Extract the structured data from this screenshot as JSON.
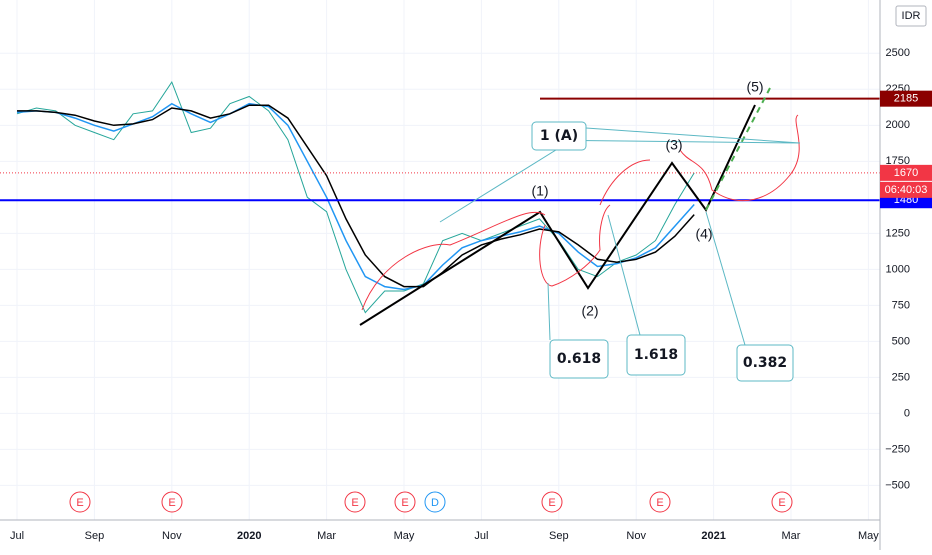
{
  "chart_data": {
    "type": "line",
    "currency": "IDR",
    "x": [
      0,
      0.5,
      1,
      1.5,
      2,
      2.5,
      3,
      3.5,
      4,
      4.5,
      5,
      5.5,
      6,
      6.5,
      7,
      7.5,
      8,
      8.5,
      9,
      9.5,
      10,
      10.5,
      11,
      11.5,
      12,
      12.5,
      13,
      13.5,
      14,
      14.5,
      15,
      15.5,
      16,
      16.5,
      17,
      17.5
    ],
    "series": [
      {
        "color": "#26a69a",
        "values": [
          2080,
          2120,
          2100,
          2000,
          1950,
          1900,
          2080,
          2100,
          2300,
          1950,
          1980,
          2150,
          2200,
          2100,
          1900,
          1500,
          1400,
          1000,
          700,
          850,
          850,
          900,
          1200,
          1250,
          1200,
          1250,
          1300,
          1350,
          1200,
          1000,
          950,
          1050,
          1100,
          1200,
          1450,
          1670
        ]
      },
      {
        "color": "#2196f3",
        "values": [
          2090,
          2100,
          2090,
          2050,
          2000,
          1960,
          2010,
          2060,
          2150,
          2080,
          2020,
          2080,
          2150,
          2130,
          2000,
          1750,
          1500,
          1200,
          950,
          880,
          860,
          890,
          1030,
          1150,
          1200,
          1230,
          1260,
          1300,
          1250,
          1120,
          1020,
          1040,
          1080,
          1150,
          1300,
          1450
        ]
      },
      {
        "color": "#000000",
        "values": [
          2100,
          2100,
          2090,
          2070,
          2030,
          2000,
          2010,
          2040,
          2120,
          2100,
          2050,
          2080,
          2140,
          2140,
          2050,
          1850,
          1650,
          1350,
          1100,
          950,
          880,
          880,
          980,
          1100,
          1170,
          1210,
          1240,
          1280,
          1260,
          1170,
          1070,
          1050,
          1070,
          1120,
          1230,
          1380
        ]
      }
    ],
    "xlim": [
      -0.44,
      22.3
    ],
    "xticks": [
      {
        "value": 0,
        "label": "Jul"
      },
      {
        "value": 2,
        "label": "Sep"
      },
      {
        "value": 4,
        "label": "Nov"
      },
      {
        "value": 6,
        "label": "2020"
      },
      {
        "value": 8,
        "label": "Mar"
      },
      {
        "value": 10,
        "label": "May"
      },
      {
        "value": 12,
        "label": "Jul"
      },
      {
        "value": 14,
        "label": "Sep"
      },
      {
        "value": 16,
        "label": "Nov"
      },
      {
        "value": 18,
        "label": "2021"
      },
      {
        "value": 20,
        "label": "Mar"
      },
      {
        "value": 22,
        "label": "May"
      }
    ],
    "ylim": [
      -740,
      2870
    ],
    "yticks": [
      2500,
      2250,
      2000,
      1750,
      1250,
      1000,
      750,
      500,
      250,
      0,
      {
        "value": -250,
        "label": "−250"
      },
      {
        "value": -500,
        "label": "−500"
      }
    ],
    "hlines": [
      {
        "value": 2185,
        "color": "#8b0000"
      },
      {
        "value": 1670,
        "color": "#f23645"
      },
      {
        "value": 1480,
        "color": "#0000ff"
      }
    ],
    "countdown": "06:40:03",
    "wave_labels": [
      "(1)",
      "(2)",
      "(3)",
      "(4)",
      "(5)"
    ],
    "wave_a": "1 (A)",
    "fib_labels": [
      "0.618",
      "1.618",
      "0.382"
    ],
    "events": [
      "E",
      "E",
      "E",
      "E",
      "D",
      "E",
      "E",
      "E"
    ]
  }
}
